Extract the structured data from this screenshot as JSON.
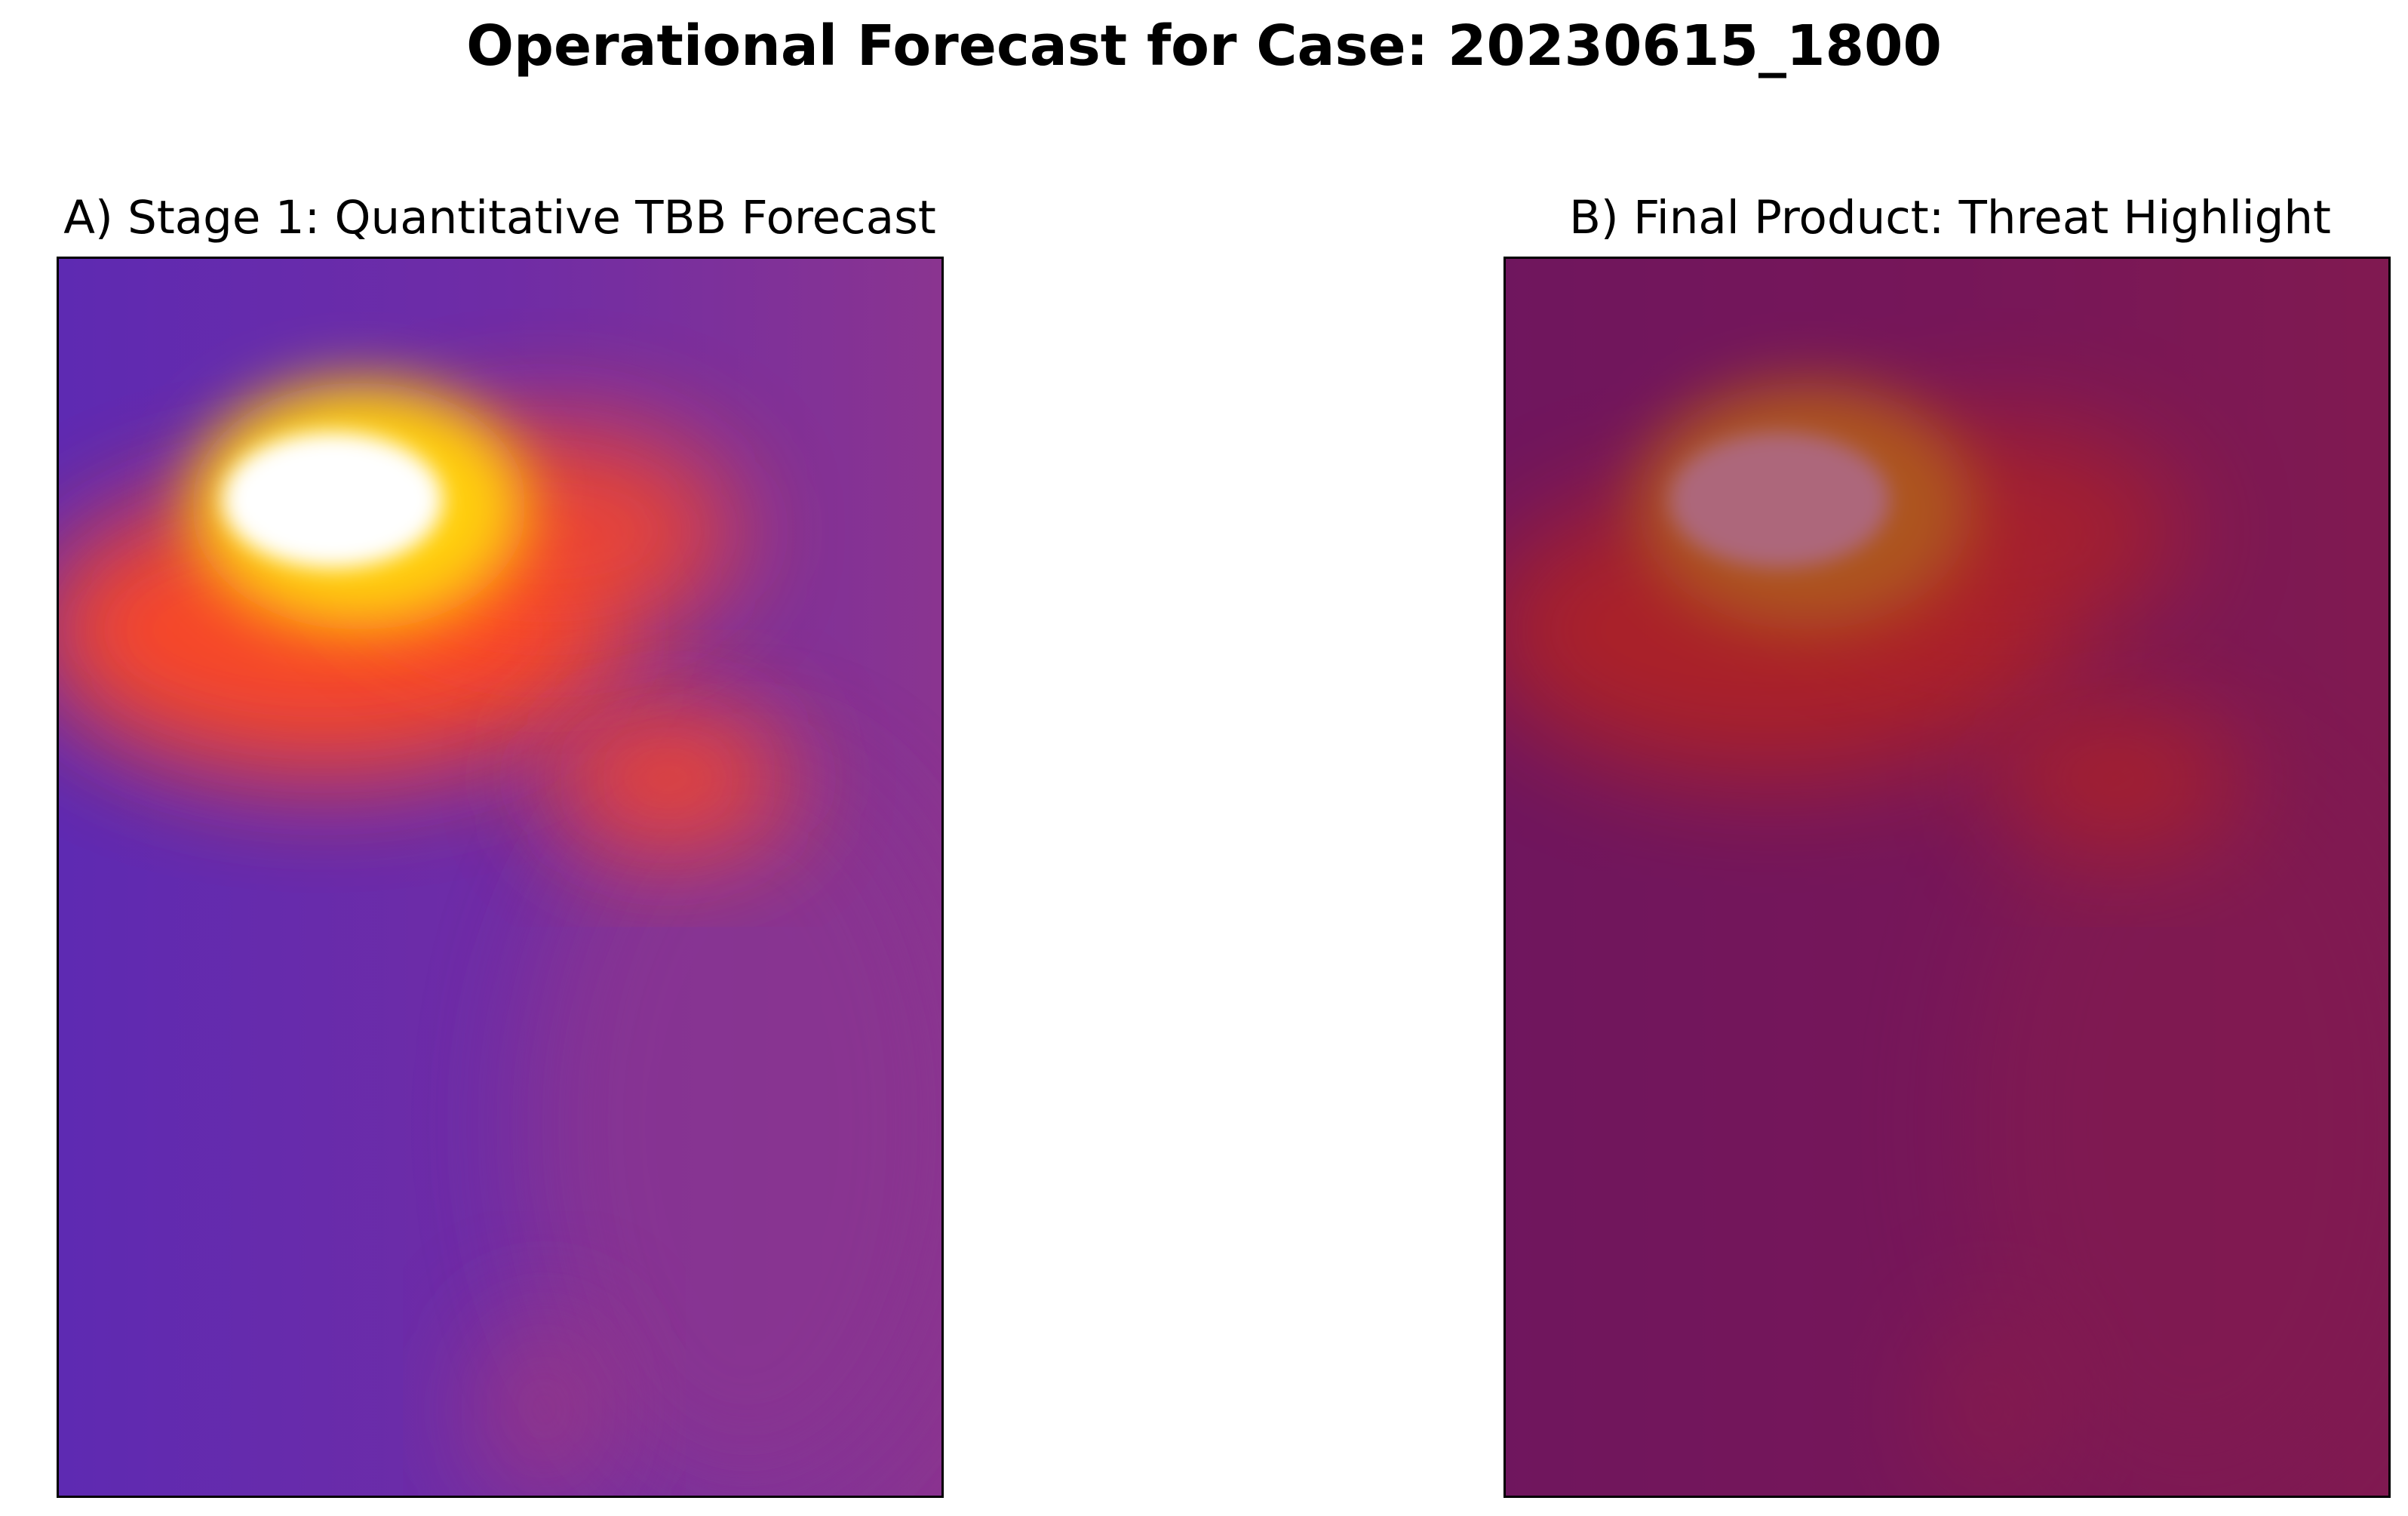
{
  "figure_title": "Operational Forecast for Case: 20230615_1800",
  "colors": {
    "background": "#5e2ab2",
    "field": "#8a3490",
    "warm": "#ff4a24",
    "hot": "#ffd010",
    "core": "#ffffff",
    "threat_overlay": "#7a0a2a"
  },
  "chart_data": [
    {
      "type": "heatmap",
      "title": "A) Stage 1: Quantitative TBB Forecast",
      "xlabel": "",
      "ylabel": "",
      "grid": false,
      "colormap": "plasma-like (purple → red → yellow → white)",
      "features": [
        {
          "kind": "core",
          "level": 1.0,
          "x": 0.31,
          "y": 0.195,
          "rx": 0.125,
          "ry": 0.055
        },
        {
          "kind": "hot",
          "level": 0.8,
          "x": 0.34,
          "y": 0.2,
          "rx": 0.19,
          "ry": 0.1
        },
        {
          "kind": "warm",
          "level": 0.6,
          "x": 0.3,
          "y": 0.3,
          "rx": 0.33,
          "ry": 0.12
        },
        {
          "kind": "warm",
          "level": 0.5,
          "x": 0.69,
          "y": 0.42,
          "rx": 0.14,
          "ry": 0.06
        },
        {
          "kind": "warm",
          "level": 0.45,
          "x": 0.55,
          "y": 0.22,
          "rx": 0.22,
          "ry": 0.09
        }
      ]
    },
    {
      "type": "heatmap",
      "title": "B) Final Product: Threat Highlight",
      "xlabel": "",
      "ylabel": "",
      "grid": false,
      "colormap": "same field with dark red threat overlay",
      "overlay_opacity": 0.62
    }
  ]
}
